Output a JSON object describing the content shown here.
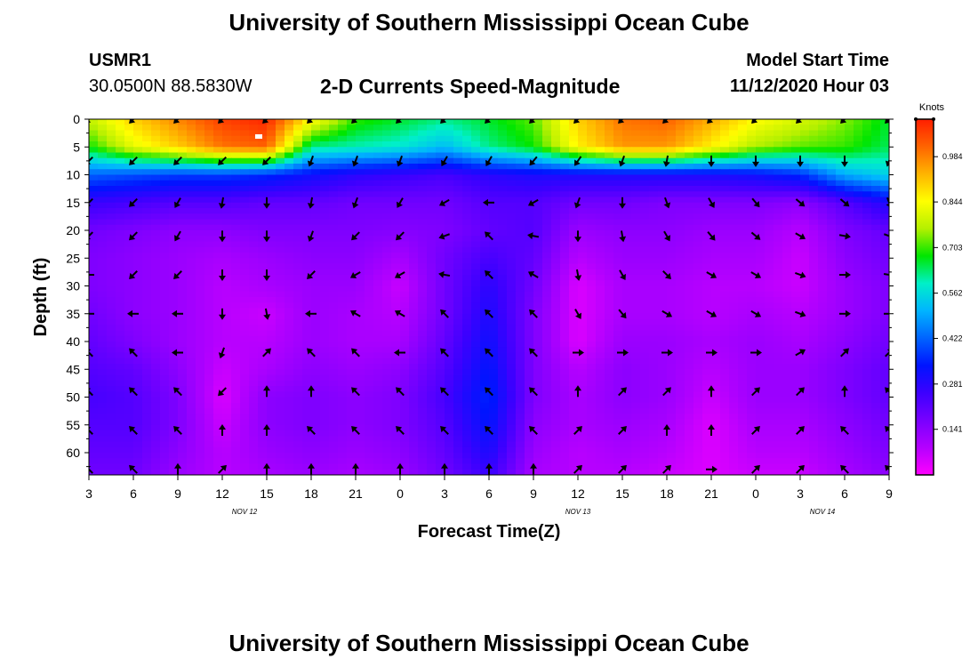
{
  "page": {
    "top_title": "University of Southern Mississippi Ocean Cube",
    "bottom_title": "University of Southern Mississippi Ocean Cube",
    "station_id": "USMR1",
    "station_coords": "30.0500N 88.5830W",
    "plot_title": "2-D Currents Speed-Magnitude",
    "model_start_label": "Model Start Time",
    "model_start_value": "11/12/2020 Hour 03"
  },
  "colors": {
    "scale": [
      "#ff00ff",
      "#b400ff",
      "#7800ff",
      "#3c00ff",
      "#0014ff",
      "#0064ff",
      "#00b4ff",
      "#00f0c8",
      "#00e600",
      "#b4f000",
      "#ffff00",
      "#ffb400",
      "#ff6400",
      "#ff1e00"
    ],
    "vector": "#000000",
    "frame": "#000000"
  },
  "chart_data": {
    "type": "heatmap",
    "title": "2-D Currents Speed-Magnitude",
    "xlabel": "Forecast Time(Z)",
    "ylabel": "Depth (ft)",
    "x_tick_labels": [
      "3",
      "6",
      "9",
      "12",
      "15",
      "18",
      "21",
      "0",
      "3",
      "6",
      "9",
      "12",
      "15",
      "18",
      "21",
      "0",
      "3",
      "6",
      "9"
    ],
    "x_hours": [
      0,
      3,
      6,
      9,
      12,
      15,
      18,
      21,
      24,
      27,
      30,
      33,
      36,
      39,
      42,
      45,
      48,
      51,
      54
    ],
    "xlim": [
      0,
      54
    ],
    "date_labels": [
      {
        "text": "NOV 12",
        "hour": 10.5
      },
      {
        "text": "NOV 13",
        "hour": 33
      },
      {
        "text": "NOV 14",
        "hour": 49.5
      }
    ],
    "y_ticks": [
      0,
      5,
      10,
      15,
      20,
      25,
      30,
      35,
      40,
      45,
      50,
      55,
      60
    ],
    "ylim": [
      0,
      64
    ],
    "colorbar": {
      "label": "Knots",
      "tick_labels": [
        "0.984",
        "0.844",
        "0.703",
        "0.562",
        "0.422",
        "0.281",
        "0.141"
      ],
      "ticks": [
        0.984,
        0.844,
        0.703,
        0.562,
        0.422,
        0.281,
        0.141
      ],
      "range": [
        0.0,
        1.1
      ]
    },
    "speed_grid": {
      "hours": [
        0,
        3,
        6,
        9,
        12,
        15,
        18,
        21,
        24,
        27,
        30,
        33,
        36,
        39,
        42,
        45,
        48,
        51,
        54
      ],
      "depths": [
        0,
        5,
        10,
        15,
        20,
        25,
        30,
        35,
        40,
        45,
        50,
        55,
        60,
        64
      ],
      "values": [
        [
          0.78,
          0.9,
          0.98,
          1.06,
          1.09,
          0.86,
          0.7,
          0.66,
          0.62,
          0.66,
          0.72,
          0.9,
          1.0,
          1.02,
          0.94,
          0.85,
          0.8,
          0.74,
          0.66
        ],
        [
          0.68,
          0.82,
          0.9,
          1.0,
          1.02,
          0.62,
          0.6,
          0.58,
          0.52,
          0.62,
          0.68,
          0.86,
          0.96,
          0.96,
          0.86,
          0.76,
          0.72,
          0.7,
          0.64
        ],
        [
          0.42,
          0.4,
          0.38,
          0.38,
          0.36,
          0.32,
          0.28,
          0.26,
          0.24,
          0.28,
          0.3,
          0.3,
          0.3,
          0.3,
          0.3,
          0.32,
          0.36,
          0.5,
          0.55
        ],
        [
          0.26,
          0.24,
          0.22,
          0.22,
          0.2,
          0.2,
          0.18,
          0.18,
          0.18,
          0.22,
          0.22,
          0.18,
          0.18,
          0.16,
          0.16,
          0.16,
          0.14,
          0.22,
          0.3
        ],
        [
          0.18,
          0.16,
          0.14,
          0.14,
          0.16,
          0.16,
          0.16,
          0.15,
          0.16,
          0.2,
          0.22,
          0.12,
          0.14,
          0.14,
          0.12,
          0.12,
          0.08,
          0.16,
          0.2
        ],
        [
          0.16,
          0.14,
          0.12,
          0.1,
          0.12,
          0.14,
          0.14,
          0.1,
          0.18,
          0.24,
          0.2,
          0.08,
          0.12,
          0.12,
          0.1,
          0.1,
          0.06,
          0.14,
          0.18
        ],
        [
          0.16,
          0.14,
          0.12,
          0.08,
          0.1,
          0.12,
          0.12,
          0.06,
          0.18,
          0.28,
          0.18,
          0.04,
          0.1,
          0.1,
          0.08,
          0.08,
          0.06,
          0.12,
          0.16
        ],
        [
          0.18,
          0.14,
          0.12,
          0.08,
          0.06,
          0.12,
          0.1,
          0.08,
          0.18,
          0.3,
          0.16,
          0.04,
          0.1,
          0.1,
          0.08,
          0.1,
          0.08,
          0.12,
          0.16
        ],
        [
          0.2,
          0.16,
          0.12,
          0.08,
          0.08,
          0.12,
          0.1,
          0.1,
          0.2,
          0.32,
          0.16,
          0.04,
          0.12,
          0.12,
          0.1,
          0.12,
          0.1,
          0.14,
          0.18
        ],
        [
          0.22,
          0.2,
          0.14,
          0.06,
          0.1,
          0.14,
          0.12,
          0.14,
          0.22,
          0.34,
          0.16,
          0.08,
          0.14,
          0.12,
          0.08,
          0.12,
          0.12,
          0.16,
          0.2
        ],
        [
          0.24,
          0.22,
          0.16,
          0.04,
          0.14,
          0.16,
          0.14,
          0.16,
          0.24,
          0.36,
          0.16,
          0.1,
          0.14,
          0.12,
          0.06,
          0.12,
          0.12,
          0.16,
          0.2
        ],
        [
          0.22,
          0.22,
          0.16,
          0.06,
          0.14,
          0.16,
          0.14,
          0.16,
          0.22,
          0.34,
          0.14,
          0.1,
          0.12,
          0.1,
          0.04,
          0.1,
          0.1,
          0.14,
          0.18
        ],
        [
          0.2,
          0.2,
          0.14,
          0.08,
          0.12,
          0.14,
          0.12,
          0.14,
          0.2,
          0.3,
          0.12,
          0.08,
          0.1,
          0.08,
          0.04,
          0.08,
          0.08,
          0.12,
          0.16
        ],
        [
          0.18,
          0.18,
          0.12,
          0.08,
          0.1,
          0.12,
          0.1,
          0.12,
          0.18,
          0.26,
          0.1,
          0.08,
          0.08,
          0.06,
          0.04,
          0.06,
          0.06,
          0.1,
          0.14
        ]
      ]
    },
    "vectors": {
      "hours": [
        0,
        3,
        6,
        9,
        12,
        15,
        18,
        21,
        24,
        27,
        30,
        33,
        36,
        39,
        42,
        45,
        48,
        51,
        54
      ],
      "depths": [
        0,
        7.5,
        15,
        21,
        28,
        35,
        42,
        49,
        56,
        63
      ],
      "direction_deg": [
        [
          225,
          225,
          225,
          225,
          225,
          225,
          225,
          225,
          225,
          225,
          225,
          225,
          225,
          225,
          225,
          225,
          225,
          225,
          225
        ],
        [
          225,
          225,
          225,
          225,
          225,
          200,
          200,
          200,
          210,
          210,
          220,
          215,
          200,
          190,
          180,
          180,
          180,
          180,
          200
        ],
        [
          225,
          225,
          210,
          190,
          180,
          190,
          200,
          210,
          240,
          270,
          240,
          200,
          180,
          160,
          150,
          140,
          130,
          130,
          160
        ],
        [
          225,
          225,
          210,
          180,
          180,
          200,
          225,
          225,
          250,
          315,
          280,
          180,
          170,
          150,
          140,
          130,
          120,
          100,
          110
        ],
        [
          270,
          225,
          225,
          180,
          180,
          225,
          240,
          240,
          280,
          315,
          300,
          170,
          150,
          135,
          120,
          120,
          110,
          90,
          100
        ],
        [
          270,
          270,
          270,
          180,
          170,
          270,
          300,
          300,
          315,
          315,
          315,
          150,
          140,
          120,
          120,
          120,
          110,
          90,
          90
        ],
        [
          315,
          315,
          270,
          200,
          45,
          315,
          315,
          270,
          315,
          315,
          315,
          90,
          90,
          90,
          90,
          90,
          60,
          45,
          45
        ],
        [
          315,
          315,
          315,
          225,
          0,
          0,
          315,
          315,
          315,
          315,
          315,
          0,
          45,
          45,
          0,
          45,
          45,
          0,
          315
        ],
        [
          315,
          315,
          315,
          0,
          0,
          315,
          315,
          315,
          315,
          315,
          315,
          45,
          45,
          0,
          0,
          45,
          45,
          315,
          315
        ],
        [
          315,
          315,
          0,
          45,
          0,
          0,
          0,
          0,
          0,
          0,
          0,
          45,
          45,
          45,
          90,
          45,
          45,
          315,
          315
        ]
      ]
    }
  }
}
